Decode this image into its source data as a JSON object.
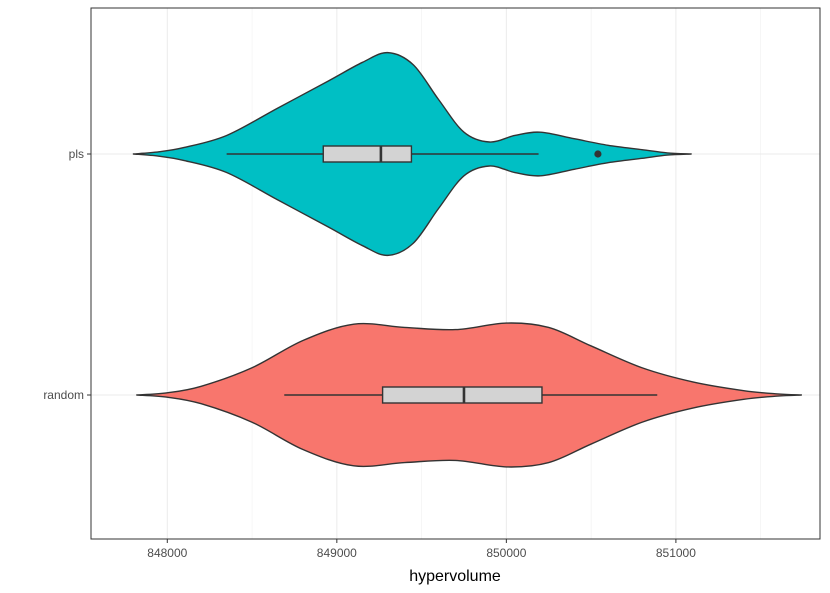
{
  "chart_data": {
    "type": "violin",
    "title": "",
    "xlabel": "hypervolume",
    "ylabel": "",
    "xlim": [
      847550,
      851850
    ],
    "x_ticks": [
      848000,
      849000,
      850000,
      851000
    ],
    "x_tick_labels": [
      "848000",
      "849000",
      "850000",
      "851000"
    ],
    "categories": [
      "pls",
      "random"
    ],
    "grid": true,
    "legend": "none",
    "series": [
      {
        "name": "pls",
        "color": "#00BFC4",
        "box": {
          "min": 848350,
          "q1": 848920,
          "median": 849260,
          "q3": 849440,
          "max": 850190
        },
        "outliers": [
          850540
        ],
        "density": [
          [
            847800,
            0.0
          ],
          [
            847950,
            0.02
          ],
          [
            848100,
            0.06
          ],
          [
            848350,
            0.17
          ],
          [
            848650,
            0.42
          ],
          [
            848950,
            0.67
          ],
          [
            849150,
            0.84
          ],
          [
            849300,
            0.93
          ],
          [
            849450,
            0.82
          ],
          [
            849600,
            0.5
          ],
          [
            849750,
            0.2
          ],
          [
            849900,
            0.11
          ],
          [
            850050,
            0.17
          ],
          [
            850200,
            0.2
          ],
          [
            850400,
            0.14
          ],
          [
            850600,
            0.08
          ],
          [
            850800,
            0.04
          ],
          [
            850950,
            0.01
          ],
          [
            851090,
            0.0
          ]
        ]
      },
      {
        "name": "random",
        "color": "#F8766D",
        "box": {
          "min": 848690,
          "q1": 849270,
          "median": 849750,
          "q3": 850210,
          "max": 850890
        },
        "outliers": [],
        "density": [
          [
            847820,
            0.0
          ],
          [
            848000,
            0.02
          ],
          [
            848200,
            0.08
          ],
          [
            848500,
            0.25
          ],
          [
            848800,
            0.5
          ],
          [
            849100,
            0.65
          ],
          [
            849400,
            0.62
          ],
          [
            849700,
            0.6
          ],
          [
            850000,
            0.66
          ],
          [
            850250,
            0.62
          ],
          [
            850500,
            0.45
          ],
          [
            850800,
            0.25
          ],
          [
            851100,
            0.12
          ],
          [
            851400,
            0.04
          ],
          [
            851600,
            0.01
          ],
          [
            851740,
            0.0
          ]
        ]
      }
    ]
  }
}
